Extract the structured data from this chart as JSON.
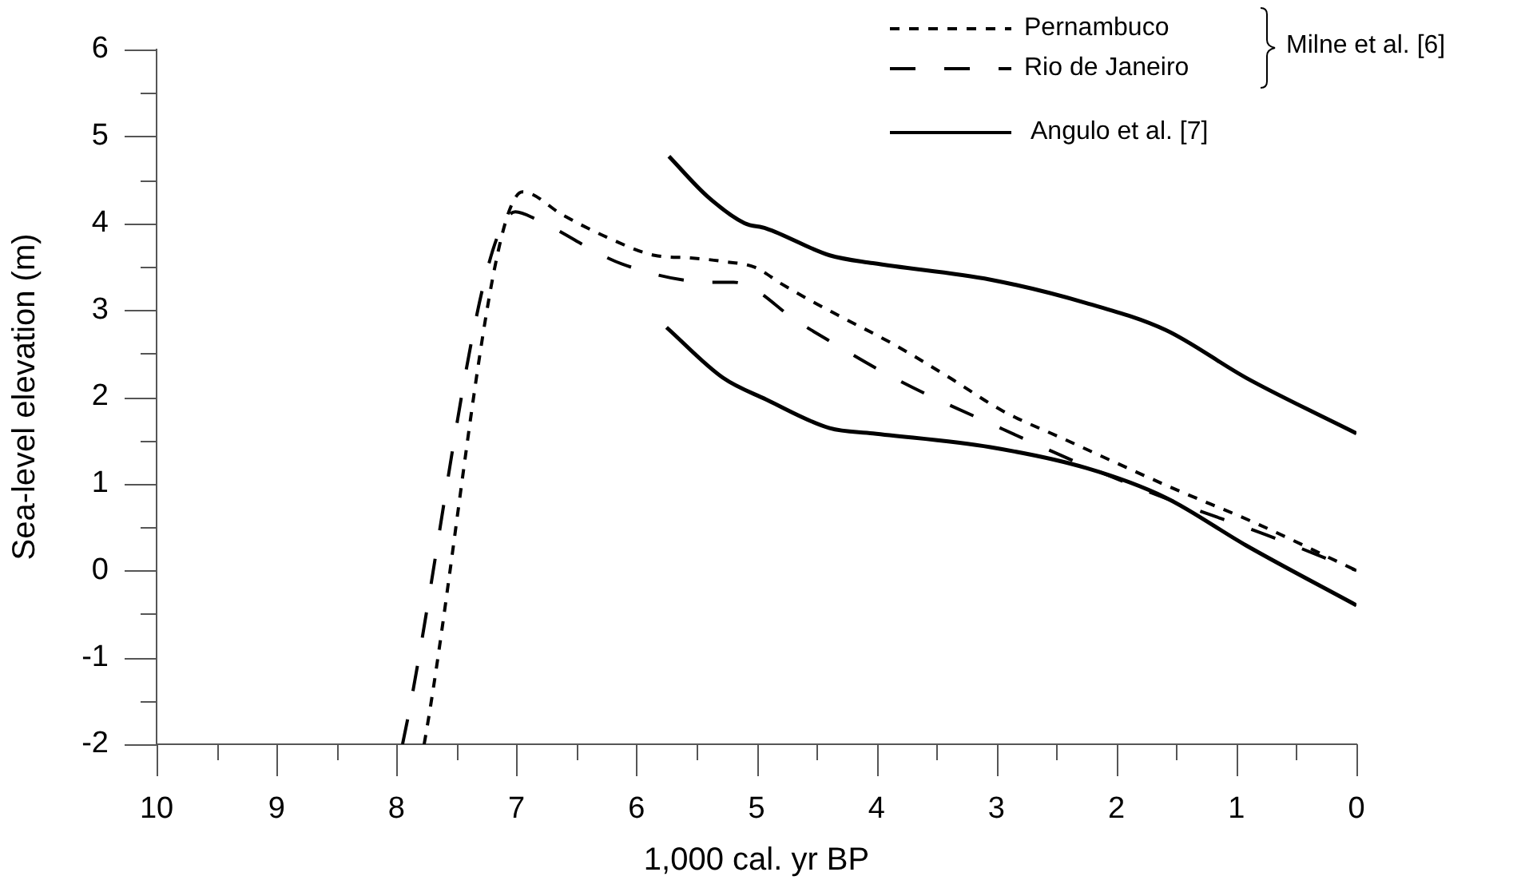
{
  "chart_data": {
    "type": "line",
    "xlabel": "1,000 cal. yr BP",
    "ylabel": "Sea-level elevation (m)",
    "xlim": [
      10,
      0
    ],
    "ylim": [
      -2,
      6
    ],
    "xticks": [
      10,
      {
        "value": 9.5,
        "label": null
      },
      9,
      {
        "value": 8.5,
        "label": null
      },
      8,
      {
        "value": 7.5,
        "label": null
      },
      7,
      {
        "value": 6.5,
        "label": null
      },
      6,
      {
        "value": 5.5,
        "label": null
      },
      5,
      {
        "value": 4.5,
        "label": null
      },
      4,
      {
        "value": 3.5,
        "label": null
      },
      3,
      {
        "value": 2.5,
        "label": null
      },
      2,
      {
        "value": 1.5,
        "label": null
      },
      1,
      {
        "value": 0.5,
        "label": null
      },
      0
    ],
    "yticks": [
      -2,
      {
        "value": -1.5,
        "label": null
      },
      -1,
      {
        "value": -0.5,
        "label": null
      },
      0,
      {
        "value": 0.5,
        "label": null
      },
      1,
      {
        "value": 1.5,
        "label": null
      },
      2,
      {
        "value": 2.5,
        "label": null
      },
      3,
      {
        "value": 3.5,
        "label": null
      },
      4,
      {
        "value": 4.5,
        "label": null
      },
      5,
      {
        "value": 5.5,
        "label": null
      },
      6
    ],
    "grid": false,
    "legend": "top right",
    "marker": "none",
    "annotations": [
      "Milne et al. [6]"
    ],
    "series": [
      {
        "name": "Pernambuco",
        "color": "#000000",
        "line_style": "dashed",
        "x": [
          7.77,
          6.95,
          6.61,
          6.25,
          5.85,
          5.55,
          5.28,
          5.01,
          4.79,
          4.55,
          4.32,
          3.85,
          3.39,
          2.95,
          2.43,
          1.55,
          0.83,
          0
        ],
        "values": [
          -2,
          4.36,
          4.09,
          3.84,
          3.63,
          3.6,
          3.56,
          3.49,
          3.3,
          3.11,
          2.94,
          2.6,
          2.22,
          1.84,
          1.51,
          0.96,
          0.54,
          0
        ]
      },
      {
        "name": "Rio de Janeiro",
        "color": "#000000",
        "line_style": "dashed",
        "x": [
          7.95,
          7.01,
          6.83,
          6.12,
          5.36,
          5.19,
          4.65,
          4.52,
          3.83,
          2.95,
          2.25,
          1.49,
          0.75,
          0
        ],
        "values": [
          -2,
          4.13,
          4.04,
          3.53,
          3.32,
          3.32,
          2.86,
          2.75,
          2.2,
          1.63,
          1.2,
          0.78,
          0.41,
          0
        ]
      },
      {
        "name": "Angulo et al. [7]",
        "color": "#000000",
        "line_style": "solid",
        "x": [
          5.73,
          5.41,
          5.1,
          4.92,
          4.39,
          4.03,
          3.05,
          2.25,
          1.59,
          0.92,
          0
        ],
        "values": [
          4.77,
          4.31,
          4.0,
          3.94,
          3.63,
          3.54,
          3.35,
          3.08,
          2.77,
          2.22,
          1.58
        ]
      },
      {
        "color": "#000000",
        "line_style": "solid",
        "x": [
          5.75,
          5.28,
          4.92,
          4.39,
          4.03,
          3.05,
          2.25,
          1.59,
          0.92,
          0
        ],
        "values": [
          2.8,
          2.22,
          1.97,
          1.64,
          1.58,
          1.42,
          1.18,
          0.84,
          0.29,
          -0.4
        ]
      }
    ]
  }
}
